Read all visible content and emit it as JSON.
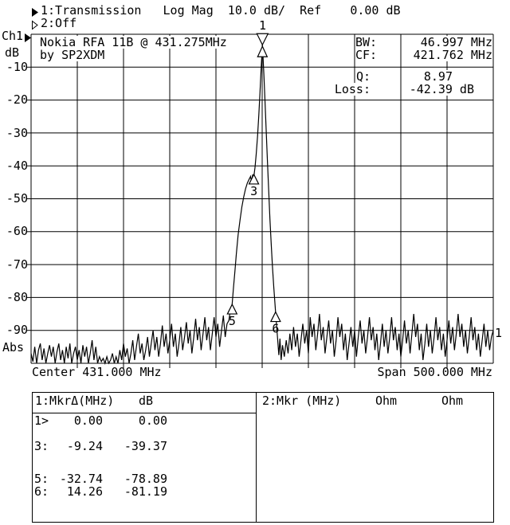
{
  "header": {
    "line1": "1:Transmission   Log Mag  10.0 dB/  Ref    0.00 dB",
    "line2": "2:Off",
    "channel_label": "Ch1",
    "units_label": "dB",
    "abs_label": "Abs",
    "center_label": "Center 431.000 MHz",
    "span_label": "Span 500.000 MHz",
    "trace_number_right": "1"
  },
  "annotation": {
    "line1": "Nokia RFA 11B @ 431.275MHz",
    "line2": "by SP2XDM"
  },
  "measurements": {
    "bw": {
      "label": "BW:",
      "value": "46.997 MHz"
    },
    "cf": {
      "label": "CF:",
      "value": "421.762 MHz"
    },
    "q": {
      "label": "Q:",
      "value": "8.97"
    },
    "loss": {
      "label": "Loss:",
      "value": "-42.39 dB"
    }
  },
  "marker_table": {
    "panel1": {
      "header_left": "1:MkrΔ(MHz)",
      "header_right": "dB",
      "rows": [
        {
          "id": "1>",
          "delta": "0.00",
          "db": "0.00"
        },
        {
          "id": "3:",
          "delta": "-9.24",
          "db": "-39.37"
        },
        {
          "id": "5:",
          "delta": "-32.74",
          "db": "-78.89"
        },
        {
          "id": "6:",
          "delta": "14.26",
          "db": "-81.19"
        }
      ]
    },
    "panel2": {
      "title": "2:Mkr (MHz)",
      "col1": "Ohm",
      "col2": "Ohm"
    }
  },
  "chart_data": {
    "type": "line",
    "title": "Transmission log-magnitude sweep of Nokia RFA 11B filter",
    "x_center_mhz": 431.0,
    "x_span_mhz": 500.0,
    "x_range": [
      181,
      681
    ],
    "ylim": [
      -100,
      0
    ],
    "ref_db": 0.0,
    "db_per_div": 10.0,
    "grid_divisions": {
      "x": 10,
      "y": 10
    },
    "ylabels": [
      "-10",
      "-20",
      "-30",
      "-40",
      "-50",
      "-60",
      "-70",
      "-80",
      "-90"
    ],
    "legend_position": "none",
    "markers": [
      {
        "label": "1",
        "f_mhz": 431.275,
        "db": -3.2,
        "style": "active"
      },
      {
        "label": "",
        "f_mhz": 431.275,
        "db": -3.2,
        "style": "reference"
      },
      {
        "label": "3",
        "f_mhz": 422.035,
        "db": -42.6,
        "style": "normal"
      },
      {
        "label": "5",
        "f_mhz": 398.535,
        "db": -82.1,
        "style": "normal"
      },
      {
        "label": "6",
        "f_mhz": 445.535,
        "db": -84.4,
        "style": "normal"
      }
    ],
    "trace": [
      [
        181,
        -97
      ],
      [
        183,
        -99.5
      ],
      [
        185,
        -95
      ],
      [
        187,
        -100
      ],
      [
        189,
        -96
      ],
      [
        191,
        -94
      ],
      [
        193,
        -99
      ],
      [
        195,
        -95.5
      ],
      [
        197,
        -100
      ],
      [
        199,
        -97
      ],
      [
        201,
        -94.5
      ],
      [
        203,
        -98
      ],
      [
        205,
        -95
      ],
      [
        207,
        -100
      ],
      [
        209,
        -96.5
      ],
      [
        211,
        -94
      ],
      [
        213,
        -99
      ],
      [
        215,
        -96
      ],
      [
        217,
        -100
      ],
      [
        219,
        -95
      ],
      [
        221,
        -98.5
      ],
      [
        223,
        -94
      ],
      [
        225,
        -100
      ],
      [
        227,
        -97
      ],
      [
        229,
        -95
      ],
      [
        231,
        -99
      ],
      [
        233,
        -96
      ],
      [
        235,
        -100
      ],
      [
        237,
        -94.5
      ],
      [
        239,
        -98
      ],
      [
        241,
        -95
      ],
      [
        243,
        -100
      ],
      [
        245,
        -97
      ],
      [
        247,
        -93
      ],
      [
        249,
        -99
      ],
      [
        251,
        -95
      ],
      [
        253,
        -100
      ],
      [
        255,
        -98
      ],
      [
        257,
        -99.5
      ],
      [
        259,
        -98.5
      ],
      [
        261,
        -100
      ],
      [
        263,
        -98
      ],
      [
        265,
        -100
      ],
      [
        267,
        -99
      ],
      [
        269,
        -97
      ],
      [
        271,
        -100
      ],
      [
        273,
        -98
      ],
      [
        275,
        -100
      ],
      [
        277,
        -96
      ],
      [
        279,
        -99
      ],
      [
        281,
        -94
      ],
      [
        283,
        -98
      ],
      [
        285,
        -95.5
      ],
      [
        287,
        -100
      ],
      [
        289,
        -97
      ],
      [
        291,
        -93
      ],
      [
        293,
        -99
      ],
      [
        295,
        -95
      ],
      [
        297,
        -91
      ],
      [
        299,
        -97
      ],
      [
        301,
        -94
      ],
      [
        303,
        -99
      ],
      [
        305,
        -96
      ],
      [
        307,
        -92
      ],
      [
        309,
        -98
      ],
      [
        311,
        -94
      ],
      [
        313,
        -90
      ],
      [
        315,
        -96
      ],
      [
        317,
        -92
      ],
      [
        319,
        -98
      ],
      [
        321,
        -94
      ],
      [
        323,
        -88.5
      ],
      [
        325,
        -95
      ],
      [
        327,
        -91
      ],
      [
        329,
        -97
      ],
      [
        331,
        -93
      ],
      [
        333,
        -88
      ],
      [
        335,
        -95
      ],
      [
        337,
        -91
      ],
      [
        339,
        -98
      ],
      [
        341,
        -94
      ],
      [
        343,
        -89
      ],
      [
        345,
        -96
      ],
      [
        347,
        -92
      ],
      [
        349,
        -87.5
      ],
      [
        351,
        -94
      ],
      [
        353,
        -90
      ],
      [
        355,
        -97
      ],
      [
        357,
        -92
      ],
      [
        359,
        -86.5
      ],
      [
        361,
        -93
      ],
      [
        363,
        -89
      ],
      [
        365,
        -96
      ],
      [
        367,
        -91
      ],
      [
        369,
        -86
      ],
      [
        371,
        -93
      ],
      [
        373,
        -89
      ],
      [
        375,
        -96
      ],
      [
        377,
        -91
      ],
      [
        379,
        -86
      ],
      [
        381,
        -92
      ],
      [
        383,
        -88
      ],
      [
        385,
        -95
      ],
      [
        387,
        -90
      ],
      [
        389,
        -85.5
      ],
      [
        391,
        -92
      ],
      [
        393,
        -88
      ],
      [
        395,
        -87
      ],
      [
        396.5,
        -84
      ],
      [
        398.5,
        -82.1
      ],
      [
        400,
        -77
      ],
      [
        401.5,
        -72
      ],
      [
        403,
        -67
      ],
      [
        405,
        -61
      ],
      [
        407,
        -56.5
      ],
      [
        409,
        -52.5
      ],
      [
        411,
        -49.5
      ],
      [
        413,
        -47
      ],
      [
        415,
        -45.2
      ],
      [
        417,
        -44
      ],
      [
        418.5,
        -43.2
      ],
      [
        419.6,
        -45.2
      ],
      [
        420.7,
        -42.6
      ],
      [
        421.6,
        -44.9
      ],
      [
        422.4,
        -42.4
      ],
      [
        423.2,
        -40.5
      ],
      [
        424.5,
        -36.5
      ],
      [
        426,
        -31
      ],
      [
        427.4,
        -24.5
      ],
      [
        428.8,
        -17
      ],
      [
        430,
        -10
      ],
      [
        430.8,
        -5.5
      ],
      [
        431.3,
        -3.2
      ],
      [
        431.9,
        -6.5
      ],
      [
        432.8,
        -12
      ],
      [
        434,
        -20
      ],
      [
        435.3,
        -29
      ],
      [
        436.6,
        -38
      ],
      [
        438,
        -47
      ],
      [
        439.4,
        -56
      ],
      [
        440.8,
        -64
      ],
      [
        442.2,
        -71
      ],
      [
        443.6,
        -77
      ],
      [
        444.4,
        -80
      ],
      [
        445.5,
        -84.4
      ],
      [
        446.6,
        -88.5
      ],
      [
        447.8,
        -93
      ],
      [
        449,
        -97.5
      ],
      [
        450.2,
        -92.5
      ],
      [
        451.5,
        -99
      ],
      [
        453,
        -94.5
      ],
      [
        455,
        -98
      ],
      [
        457,
        -93
      ],
      [
        459,
        -97
      ],
      [
        461,
        -91
      ],
      [
        463,
        -96
      ],
      [
        465,
        -89
      ],
      [
        467,
        -95
      ],
      [
        469,
        -91
      ],
      [
        471,
        -98
      ],
      [
        473,
        -93
      ],
      [
        475,
        -88
      ],
      [
        477,
        -94
      ],
      [
        479,
        -90
      ],
      [
        481,
        -97
      ],
      [
        483,
        -86
      ],
      [
        485,
        -92
      ],
      [
        487,
        -88
      ],
      [
        489,
        -96
      ],
      [
        491,
        -91
      ],
      [
        493,
        -85
      ],
      [
        495,
        -93
      ],
      [
        497,
        -89
      ],
      [
        499,
        -97
      ],
      [
        501,
        -92
      ],
      [
        503,
        -87
      ],
      [
        505,
        -94
      ],
      [
        507,
        -90
      ],
      [
        509,
        -98
      ],
      [
        511,
        -93
      ],
      [
        513,
        -86
      ],
      [
        515,
        -92
      ],
      [
        517,
        -88
      ],
      [
        519,
        -96
      ],
      [
        521,
        -91
      ],
      [
        523,
        -99
      ],
      [
        525,
        -94
      ],
      [
        527,
        -89
      ],
      [
        529,
        -95
      ],
      [
        531,
        -90
      ],
      [
        533,
        -98
      ],
      [
        535,
        -92
      ],
      [
        537,
        -87
      ],
      [
        539,
        -94
      ],
      [
        541,
        -90
      ],
      [
        543,
        -97
      ],
      [
        545,
        -92
      ],
      [
        547,
        -86
      ],
      [
        549,
        -93
      ],
      [
        551,
        -89
      ],
      [
        553,
        -96
      ],
      [
        555,
        -91
      ],
      [
        557,
        -99
      ],
      [
        559,
        -94
      ],
      [
        561,
        -88
      ],
      [
        563,
        -95
      ],
      [
        565,
        -90
      ],
      [
        567,
        -97
      ],
      [
        569,
        -92
      ],
      [
        571,
        -86
      ],
      [
        573,
        -93
      ],
      [
        575,
        -89
      ],
      [
        577,
        -96
      ],
      [
        579,
        -91
      ],
      [
        581,
        -98
      ],
      [
        583,
        -93
      ],
      [
        585,
        -87
      ],
      [
        587,
        -94
      ],
      [
        589,
        -90
      ],
      [
        591,
        -97
      ],
      [
        593,
        -91
      ],
      [
        595,
        -85
      ],
      [
        597,
        -92
      ],
      [
        599,
        -88
      ],
      [
        601,
        -96
      ],
      [
        603,
        -91
      ],
      [
        605,
        -99
      ],
      [
        607,
        -94
      ],
      [
        609,
        -88
      ],
      [
        611,
        -95
      ],
      [
        613,
        -90
      ],
      [
        615,
        -97
      ],
      [
        617,
        -92
      ],
      [
        619,
        -86
      ],
      [
        621,
        -93
      ],
      [
        623,
        -89
      ],
      [
        625,
        -96
      ],
      [
        627,
        -91
      ],
      [
        629,
        -98
      ],
      [
        631,
        -93
      ],
      [
        633,
        -87
      ],
      [
        635,
        -94
      ],
      [
        637,
        -89
      ],
      [
        639,
        -96
      ],
      [
        641,
        -91
      ],
      [
        643,
        -85
      ],
      [
        645,
        -92
      ],
      [
        647,
        -88
      ],
      [
        649,
        -95
      ],
      [
        651,
        -90
      ],
      [
        653,
        -97
      ],
      [
        655,
        -92
      ],
      [
        657,
        -86
      ],
      [
        659,
        -93
      ],
      [
        661,
        -89
      ],
      [
        663,
        -96
      ],
      [
        665,
        -91
      ],
      [
        667,
        -98
      ],
      [
        669,
        -93
      ],
      [
        671,
        -88
      ],
      [
        673,
        -95
      ],
      [
        675,
        -90
      ],
      [
        677,
        -96
      ],
      [
        679,
        -92
      ],
      [
        681,
        -90
      ]
    ]
  }
}
